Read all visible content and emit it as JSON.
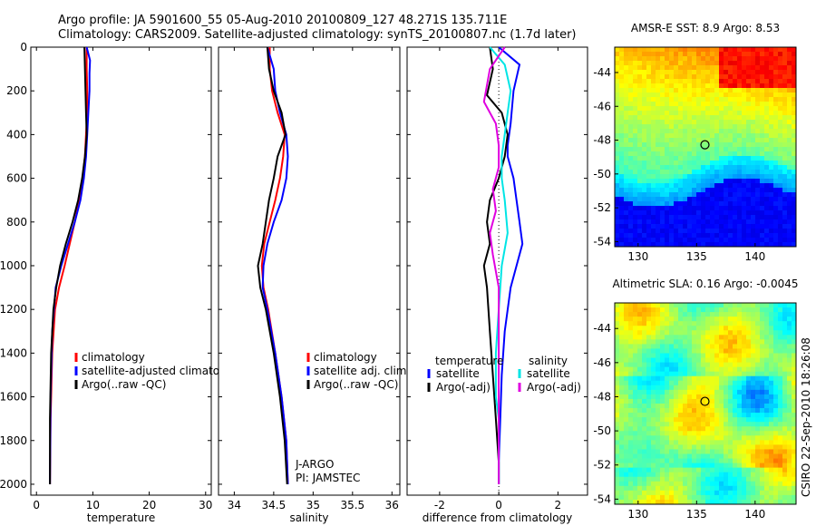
{
  "header": {
    "line1": "Argo profile: JA 5901600_55 05-Aug-2010 20100809_127 48.271S 135.711E",
    "line2": "Climatology: CARS2009. Satellite-adjusted climatology: synTS_20100807.nc (1.7d later)"
  },
  "side_text": "CSIRO 22-Sep-2010 18:26:08",
  "chart_data": [
    {
      "type": "line",
      "xlabel": "temperature",
      "xlim": [
        -1,
        31
      ],
      "ylim": [
        2050,
        0
      ],
      "xticks": [
        0,
        10,
        20,
        30
      ],
      "yticks": [
        0,
        200,
        400,
        600,
        800,
        1000,
        1200,
        1400,
        1600,
        1800,
        2000
      ],
      "legend": [
        "climatology",
        "satellite-adjusted climatology",
        "Argo(..raw -QC)"
      ],
      "series": [
        {
          "name": "climatology",
          "color": "#ff0000",
          "x": [
            8.9,
            8.9,
            9.0,
            9.0,
            8.8,
            8.6,
            8.2,
            7.6,
            6.8,
            5.9,
            5.0,
            4.0,
            3.3,
            2.8,
            2.5,
            2.4
          ],
          "y": [
            0,
            100,
            200,
            300,
            400,
            500,
            600,
            700,
            800,
            900,
            1000,
            1100,
            1200,
            1400,
            1700,
            2000
          ]
        },
        {
          "name": "satellite-adjusted climatology",
          "color": "#0000ff",
          "x": [
            8.9,
            9.5,
            9.4,
            9.4,
            9.2,
            9.0,
            8.8,
            8.4,
            7.8,
            6.8,
            5.6,
            4.4,
            3.4,
            2.8,
            2.5,
            2.4
          ],
          "y": [
            0,
            60,
            120,
            200,
            300,
            400,
            500,
            600,
            700,
            800,
            900,
            1000,
            1100,
            1300,
            1600,
            2000
          ]
        },
        {
          "name": "Argo(..raw -QC)",
          "color": "#000000",
          "x": [
            8.5,
            8.6,
            8.7,
            8.8,
            8.9,
            8.6,
            8.1,
            7.4,
            6.4,
            5.2,
            4.2,
            3.5,
            3.0,
            2.6,
            2.4,
            2.4
          ],
          "y": [
            0,
            100,
            200,
            300,
            400,
            500,
            600,
            700,
            800,
            900,
            1000,
            1100,
            1200,
            1400,
            1700,
            2000
          ]
        }
      ]
    },
    {
      "type": "line",
      "xlabel": "salinity",
      "xlim": [
        33.8,
        36.1
      ],
      "ylim": [
        2050,
        0
      ],
      "xticks": [
        34,
        34.5,
        35,
        35.5,
        36
      ],
      "legend": [
        "climatology",
        "satellite adj. clim.",
        "Argo(..raw -QC)"
      ],
      "annotation": [
        "J-ARGO",
        "PI: JAMSTEC"
      ],
      "series": [
        {
          "name": "climatology",
          "color": "#ff0000",
          "x": [
            34.45,
            34.45,
            34.48,
            34.55,
            34.64,
            34.62,
            34.58,
            34.52,
            34.45,
            34.38,
            34.35,
            34.37,
            34.43,
            34.52,
            34.6,
            34.66,
            34.68
          ],
          "y": [
            0,
            100,
            200,
            300,
            400,
            500,
            600,
            700,
            800,
            900,
            1000,
            1100,
            1200,
            1400,
            1600,
            1800,
            2000
          ]
        },
        {
          "name": "satellite adj. clim.",
          "color": "#0000ff",
          "x": [
            34.42,
            34.5,
            34.52,
            34.58,
            34.66,
            34.68,
            34.66,
            34.6,
            34.5,
            34.42,
            34.37,
            34.36,
            34.42,
            34.52,
            34.6,
            34.66,
            34.68
          ],
          "y": [
            0,
            100,
            200,
            300,
            400,
            500,
            600,
            700,
            800,
            900,
            1000,
            1100,
            1200,
            1400,
            1600,
            1800,
            2000
          ]
        },
        {
          "name": "Argo(..raw -QC)",
          "color": "#000000",
          "x": [
            34.42,
            34.44,
            34.5,
            34.6,
            34.65,
            34.55,
            34.5,
            34.44,
            34.4,
            34.36,
            34.3,
            34.33,
            34.4,
            34.5,
            34.58,
            34.64,
            34.67
          ],
          "y": [
            0,
            100,
            200,
            300,
            400,
            500,
            600,
            700,
            800,
            900,
            1000,
            1100,
            1200,
            1400,
            1600,
            1800,
            2000
          ]
        }
      ]
    },
    {
      "type": "line",
      "xlabel": "difference from climatology",
      "xlim": [
        -3.1,
        3.0
      ],
      "ylim": [
        2050,
        0
      ],
      "xticks": [
        -2,
        0,
        2
      ],
      "legend_headers": [
        "temperature",
        "salinity"
      ],
      "legend": [
        "satellite",
        "Argo(-adj)",
        "satellite",
        "Argo(-adj)"
      ],
      "series": [
        {
          "name": "temperature satellite",
          "color": "#0000ff",
          "x": [
            0.0,
            0.7,
            0.5,
            0.4,
            0.3,
            0.3,
            0.5,
            0.6,
            0.7,
            0.8,
            0.6,
            0.4,
            0.2,
            0.1,
            0.05,
            0.0,
            0.0
          ],
          "y": [
            0,
            80,
            200,
            350,
            450,
            500,
            600,
            700,
            800,
            900,
            1000,
            1100,
            1300,
            1500,
            1700,
            1900,
            2000
          ]
        },
        {
          "name": "temperature Argo(-adj)",
          "color": "#000000",
          "x": [
            -0.3,
            -0.2,
            -0.4,
            0.1,
            0.3,
            0.2,
            0.0,
            -0.3,
            -0.4,
            -0.3,
            -0.5,
            -0.4,
            -0.3,
            -0.2,
            -0.1,
            0.0,
            0.0
          ],
          "y": [
            0,
            100,
            220,
            300,
            400,
            500,
            600,
            700,
            800,
            900,
            1000,
            1100,
            1300,
            1500,
            1700,
            1900,
            2000
          ]
        },
        {
          "name": "salinity satellite",
          "color": "#00e5e5",
          "x": [
            -0.3,
            0.2,
            0.4,
            0.3,
            0.2,
            0.1,
            0.1,
            0.2,
            0.3,
            0.1,
            0.0,
            -0.1,
            -0.1,
            0.0,
            0.0,
            0.0
          ],
          "y": [
            0,
            80,
            200,
            300,
            400,
            500,
            600,
            700,
            850,
            1000,
            1200,
            1400,
            1600,
            1700,
            1900,
            2000
          ]
        },
        {
          "name": "salinity Argo(-adj)",
          "color": "#e000e0",
          "x": [
            0.2,
            -0.3,
            -0.5,
            -0.1,
            0.0,
            0.0,
            -0.2,
            -0.1,
            -0.3,
            -0.2,
            0.0,
            0.0,
            0.0,
            0.0
          ],
          "y": [
            0,
            100,
            250,
            350,
            450,
            550,
            650,
            750,
            850,
            950,
            1100,
            1400,
            1700,
            2000
          ]
        }
      ]
    },
    {
      "type": "heatmap",
      "title": "AMSR-E SST: 8.9 Argo: 8.53",
      "xlim": [
        128,
        143.5
      ],
      "ylim": [
        -54.3,
        -42.5
      ],
      "xticks": [
        130,
        135,
        140
      ],
      "yticks": [
        -44,
        -46,
        -48,
        -50,
        -52,
        -54
      ],
      "marker": {
        "x": 135.711,
        "y": -48.271
      }
    },
    {
      "type": "heatmap",
      "title": "Altimetric SLA: 0.16 Argo: -0.0045",
      "xlim": [
        128,
        143.5
      ],
      "ylim": [
        -54.3,
        -42.5
      ],
      "xticks": [
        130,
        135,
        140
      ],
      "yticks": [
        -44,
        -46,
        -48,
        -50,
        -52,
        -54
      ],
      "marker": {
        "x": 135.711,
        "y": -48.271
      }
    }
  ]
}
